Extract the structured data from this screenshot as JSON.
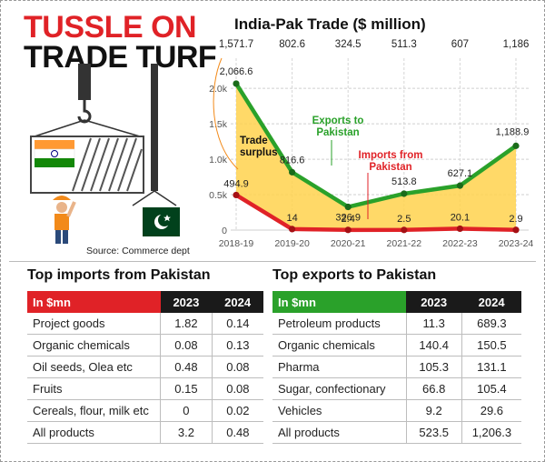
{
  "headline": {
    "line1": "TUSSLE ON",
    "line2": "TRADE TURF"
  },
  "source": "Source: Commerce dept",
  "colors": {
    "red": "#e02227",
    "green": "#2aa12a",
    "yellow": "#ffd24d",
    "dark": "#1a1a1a"
  },
  "chart_data": {
    "type": "line",
    "title": "India-Pak Trade ($ million)",
    "categories": [
      "2018-19",
      "2019-20",
      "2020-21",
      "2021-22",
      "2022-23",
      "2023-24"
    ],
    "trade_surplus_values": [
      "1,571.7",
      "802.6",
      "324.5",
      "511.3",
      "607",
      "1,186"
    ],
    "series": [
      {
        "name": "Exports to Pakistan",
        "values": [
          2066.6,
          816.6,
          326.9,
          513.8,
          627.1,
          1188.9
        ],
        "labels": [
          "2,066.6",
          "816.6",
          "326.9",
          "513.8",
          "627.1",
          "1,188.9"
        ],
        "color": "#2aa12a"
      },
      {
        "name": "Imports from Pakistan",
        "values": [
          494.9,
          14,
          2.4,
          2.5,
          20.1,
          2.9
        ],
        "labels": [
          "494.9",
          "14",
          "2.4",
          "2.5",
          "20.1",
          "2.9"
        ],
        "color": "#e02227"
      }
    ],
    "annotation": "Trade surplus",
    "yticks": [
      {
        "v": 0,
        "label": "0"
      },
      {
        "v": 500,
        "label": "0.5k"
      },
      {
        "v": 1000,
        "label": "1.0k"
      },
      {
        "v": 1500,
        "label": "1.5k"
      },
      {
        "v": 2000,
        "label": "2.0k"
      }
    ],
    "ylim": [
      0,
      2400
    ],
    "grid": true
  },
  "imports_table": {
    "title": "Top imports from Pakistan",
    "headers": [
      "In $mn",
      "2023",
      "2024"
    ],
    "rows": [
      [
        "Project goods",
        "1.82",
        "0.14"
      ],
      [
        "Organic chemicals",
        "0.08",
        "0.13"
      ],
      [
        "Oil seeds, Olea etc",
        "0.48",
        "0.08"
      ],
      [
        "Fruits",
        "0.15",
        "0.08"
      ],
      [
        "Cereals, flour, milk etc",
        "0",
        "0.02"
      ],
      [
        "All products",
        "3.2",
        "0.48"
      ]
    ]
  },
  "exports_table": {
    "title": "Top exports to Pakistan",
    "headers": [
      "In $mn",
      "2023",
      "2024"
    ],
    "rows": [
      [
        "Petroleum products",
        "11.3",
        "689.3"
      ],
      [
        "Organic chemicals",
        "140.4",
        "150.5"
      ],
      [
        "Pharma",
        "105.3",
        "131.1"
      ],
      [
        "Sugar, confectionary",
        "66.8",
        "105.4"
      ],
      [
        "Vehicles",
        "9.2",
        "29.6"
      ],
      [
        "All products",
        "523.5",
        "1,206.3"
      ]
    ]
  }
}
